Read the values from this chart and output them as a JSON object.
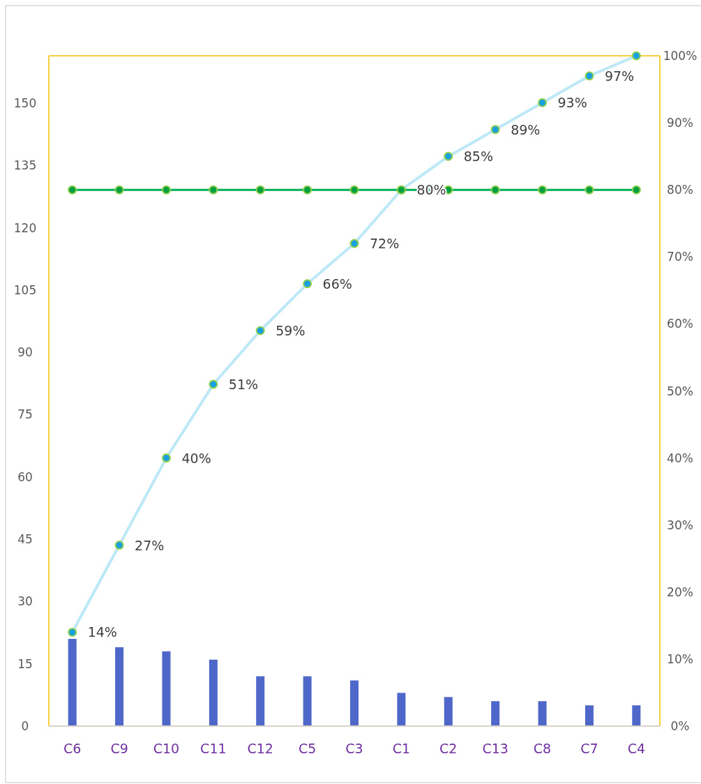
{
  "chart_data": {
    "type": "bar",
    "categories": [
      "C6",
      "C9",
      "C10",
      "C11",
      "C12",
      "C5",
      "C3",
      "C1",
      "C2",
      "C13",
      "C8",
      "C7",
      "C4"
    ],
    "ylim": [
      0,
      161.4
    ],
    "yticks": [
      0,
      15,
      30,
      45,
      60,
      75,
      90,
      105,
      120,
      135,
      150
    ],
    "y2lim": [
      0,
      100
    ],
    "y2ticks": [
      {
        "value": 0,
        "label": "0%"
      },
      {
        "value": 10,
        "label": "10%"
      },
      {
        "value": 20,
        "label": "20%"
      },
      {
        "value": 30,
        "label": "30%"
      },
      {
        "value": 40,
        "label": "40%"
      },
      {
        "value": 50,
        "label": "50%"
      },
      {
        "value": 60,
        "label": "60%"
      },
      {
        "value": 70,
        "label": "70%"
      },
      {
        "value": 80,
        "label": "80%"
      },
      {
        "value": 90,
        "label": "90%"
      },
      {
        "value": 100,
        "label": "100%"
      }
    ],
    "grid": false,
    "marker": "circle",
    "series": [
      {
        "color": "#4f67c8",
        "values": [
          21,
          19,
          18,
          16,
          12,
          12,
          11,
          8,
          7,
          6,
          6,
          5,
          5
        ]
      },
      {
        "type": "line",
        "axis": "y2",
        "color": "#bde8f7",
        "values": [
          14,
          27,
          40,
          51,
          59,
          66,
          72,
          80,
          85,
          89,
          93,
          97,
          100
        ],
        "value_labels": [
          "14%",
          "27%",
          "40%",
          "51%",
          "59%",
          "66%",
          "72%",
          "80%",
          "85%",
          "89%",
          "93%",
          "97%",
          null
        ]
      },
      {
        "type": "line",
        "axis": "y2",
        "color": "#00b050",
        "values": [
          80,
          80,
          80,
          80,
          80,
          80,
          80,
          80,
          80,
          80,
          80,
          80,
          80
        ]
      }
    ]
  }
}
